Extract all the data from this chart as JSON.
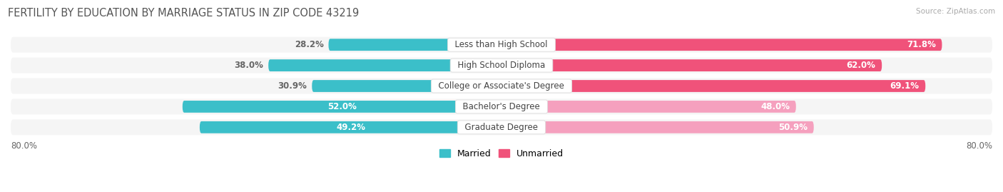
{
  "title": "FERTILITY BY EDUCATION BY MARRIAGE STATUS IN ZIP CODE 43219",
  "source": "Source: ZipAtlas.com",
  "categories": [
    "Less than High School",
    "High School Diploma",
    "College or Associate's Degree",
    "Bachelor's Degree",
    "Graduate Degree"
  ],
  "married": [
    28.2,
    38.0,
    30.9,
    52.0,
    49.2
  ],
  "unmarried": [
    71.8,
    62.0,
    69.1,
    48.0,
    50.9
  ],
  "married_color": "#3bbfc9",
  "unmarried_colors": [
    "#f0527a",
    "#f0527a",
    "#f0527a",
    "#f5a0be",
    "#f5a0be"
  ],
  "bar_bg_color": "#e8e8e8",
  "axis_min": -80.0,
  "axis_max": 80.0,
  "label_fontsize": 8.5,
  "title_fontsize": 10.5,
  "bar_height": 0.58,
  "background_color": "#ffffff",
  "row_bg_color": "#f5f5f5",
  "label_outside_color": "#666666"
}
